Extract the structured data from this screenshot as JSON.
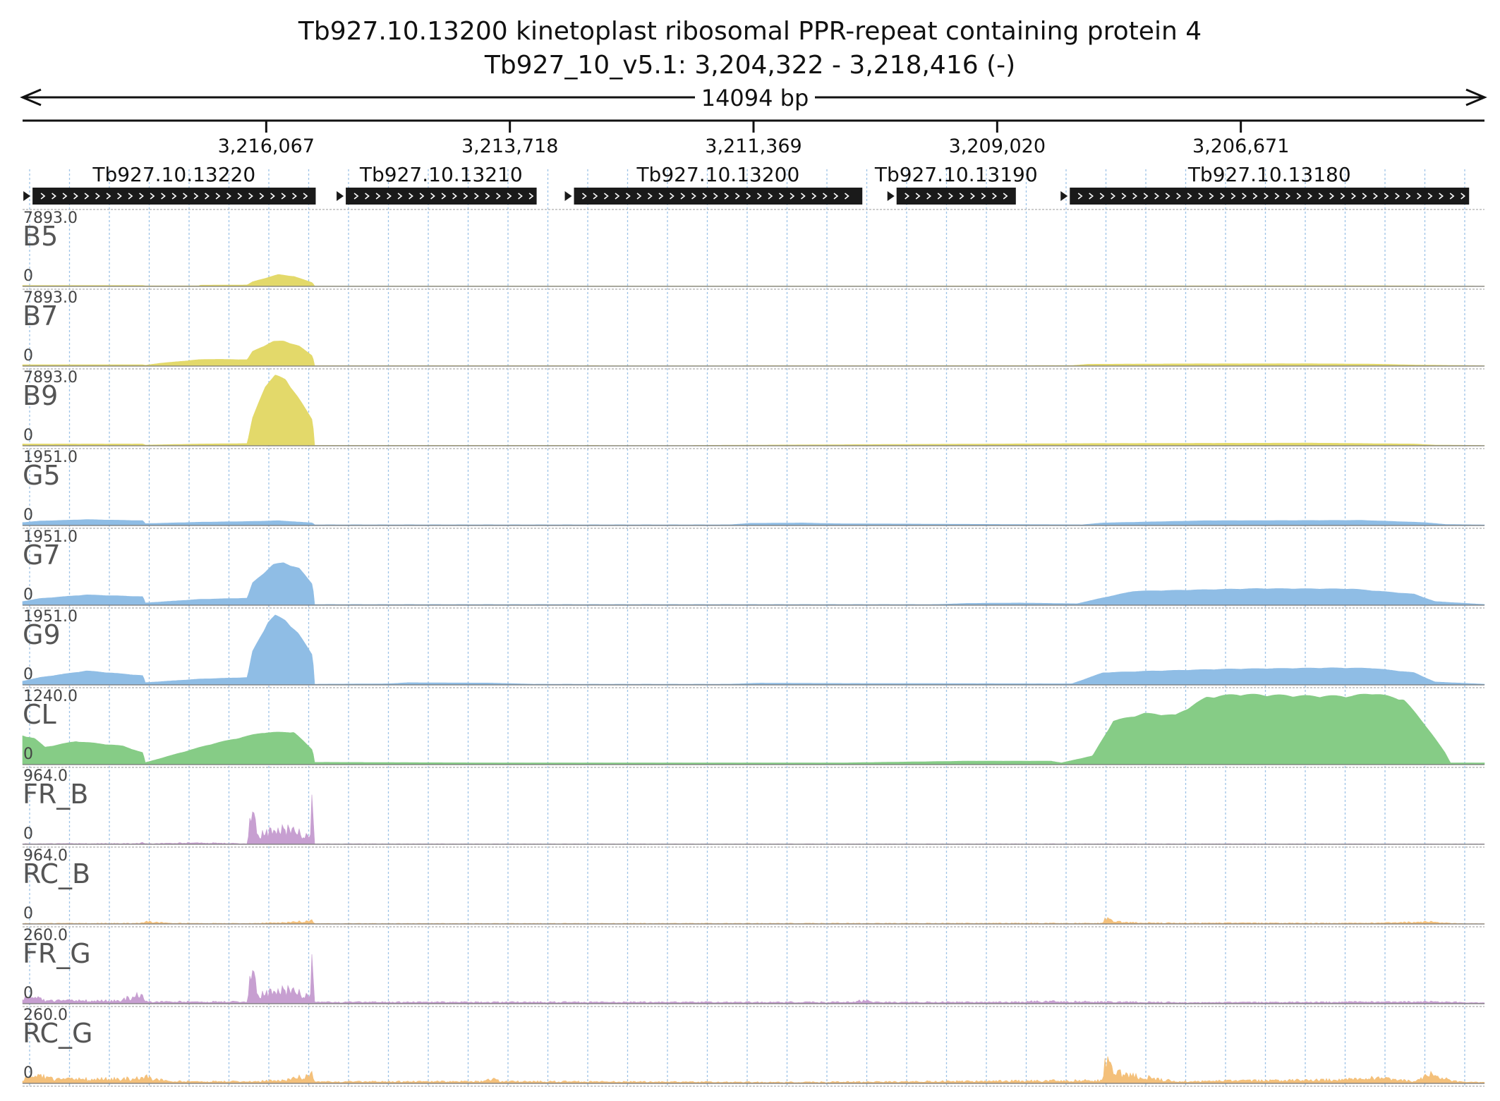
{
  "title": "Tb927.10.13200  kinetoplast ribosomal PPR-repeat containing protein 4",
  "subtitle": "Tb927_10_v5.1: 3,204,322 - 3,218,416 (-)",
  "chart_data": {
    "type": "area",
    "region": {
      "chromosome": "Tb927_10_v5.1",
      "start": 3204322,
      "end": 3218416,
      "strand": "-",
      "reversed": true
    },
    "span_label": "14094 bp",
    "x_ticks": [
      {
        "value": 3216067,
        "label": "3,216,067"
      },
      {
        "value": 3213718,
        "label": "3,213,718"
      },
      {
        "value": 3211369,
        "label": "3,211,369"
      },
      {
        "value": 3209020,
        "label": "3,209,020"
      },
      {
        "value": 3206671,
        "label": "3,206,671"
      }
    ],
    "genes": [
      {
        "name": "Tb927.10.13220",
        "start": 3218320,
        "end": 3215590
      },
      {
        "name": "Tb927.10.13210",
        "start": 3215300,
        "end": 3213460
      },
      {
        "name": "Tb927.10.13200",
        "start": 3213100,
        "end": 3210320
      },
      {
        "name": "Tb927.10.13190",
        "start": 3209990,
        "end": 3208840
      },
      {
        "name": "Tb927.10.13180",
        "start": 3208320,
        "end": 3204470
      }
    ],
    "tracks": [
      {
        "name": "B5",
        "max": 7893.0,
        "max_label": "7893.0",
        "min_label": "0",
        "color": "#e3d96a",
        "kind": "smooth",
        "profile": [
          [
            3218416,
            100
          ],
          [
            3217250,
            100
          ],
          [
            3217240,
            60
          ],
          [
            3216720,
            60
          ],
          [
            3216700,
            140
          ],
          [
            3216250,
            160
          ],
          [
            3216200,
            500
          ],
          [
            3215950,
            1300
          ],
          [
            3215800,
            1100
          ],
          [
            3215620,
            400
          ],
          [
            3215600,
            30
          ],
          [
            3212300,
            30
          ],
          [
            3211500,
            30
          ],
          [
            3207000,
            60
          ],
          [
            3206000,
            80
          ],
          [
            3205000,
            60
          ],
          [
            3204600,
            40
          ],
          [
            3204322,
            20
          ]
        ]
      },
      {
        "name": "B7",
        "max": 7893.0,
        "max_label": "7893.0",
        "min_label": "0",
        "color": "#e3d96a",
        "kind": "smooth",
        "profile": [
          [
            3218416,
            150
          ],
          [
            3217250,
            150
          ],
          [
            3217240,
            80
          ],
          [
            3217100,
            300
          ],
          [
            3216720,
            700
          ],
          [
            3216600,
            750
          ],
          [
            3216250,
            700
          ],
          [
            3216200,
            1600
          ],
          [
            3216000,
            2700
          ],
          [
            3215900,
            2750
          ],
          [
            3215750,
            2200
          ],
          [
            3215620,
            1100
          ],
          [
            3215600,
            50
          ],
          [
            3212000,
            40
          ],
          [
            3208300,
            60
          ],
          [
            3208150,
            200
          ],
          [
            3207200,
            250
          ],
          [
            3206000,
            260
          ],
          [
            3205400,
            220
          ],
          [
            3205000,
            120
          ],
          [
            3204322,
            40
          ]
        ]
      },
      {
        "name": "B9",
        "max": 7893.0,
        "max_label": "7893.0",
        "min_label": "0",
        "color": "#e3d96a",
        "kind": "smooth",
        "profile": [
          [
            3218416,
            200
          ],
          [
            3217250,
            200
          ],
          [
            3217240,
            80
          ],
          [
            3216700,
            200
          ],
          [
            3216250,
            250
          ],
          [
            3216200,
            3000
          ],
          [
            3216080,
            6500
          ],
          [
            3215980,
            7700
          ],
          [
            3215880,
            7300
          ],
          [
            3215760,
            5300
          ],
          [
            3215620,
            2800
          ],
          [
            3215600,
            50
          ],
          [
            3212000,
            40
          ],
          [
            3208150,
            250
          ],
          [
            3206000,
            300
          ],
          [
            3205000,
            200
          ],
          [
            3204800,
            80
          ],
          [
            3204322,
            40
          ]
        ]
      },
      {
        "name": "G5",
        "max": 1951.0,
        "max_label": "1951.0",
        "min_label": "0",
        "color": "#8fbde5",
        "kind": "smooth",
        "profile": [
          [
            3218416,
            80
          ],
          [
            3218250,
            120
          ],
          [
            3217800,
            160
          ],
          [
            3217250,
            130
          ],
          [
            3217240,
            50
          ],
          [
            3216700,
            90
          ],
          [
            3216200,
            110
          ],
          [
            3215950,
            130
          ],
          [
            3215620,
            70
          ],
          [
            3215600,
            20
          ],
          [
            3211600,
            20
          ],
          [
            3211400,
            60
          ],
          [
            3210900,
            70
          ],
          [
            3210600,
            50
          ],
          [
            3208200,
            20
          ],
          [
            3208000,
            70
          ],
          [
            3207000,
            130
          ],
          [
            3205500,
            140
          ],
          [
            3204900,
            80
          ],
          [
            3204700,
            30
          ],
          [
            3204322,
            15
          ]
        ]
      },
      {
        "name": "G7",
        "max": 1951.0,
        "max_label": "1951.0",
        "min_label": "0",
        "color": "#8fbde5",
        "kind": "smooth",
        "profile": [
          [
            3218416,
            100
          ],
          [
            3218250,
            180
          ],
          [
            3217800,
            280
          ],
          [
            3217250,
            230
          ],
          [
            3217240,
            60
          ],
          [
            3216700,
            160
          ],
          [
            3216250,
            190
          ],
          [
            3216200,
            600
          ],
          [
            3216000,
            1100
          ],
          [
            3215900,
            1150
          ],
          [
            3215750,
            1000
          ],
          [
            3215620,
            560
          ],
          [
            3215600,
            20
          ],
          [
            3209600,
            20
          ],
          [
            3209300,
            50
          ],
          [
            3208800,
            60
          ],
          [
            3208250,
            40
          ],
          [
            3208000,
            200
          ],
          [
            3207700,
            380
          ],
          [
            3206500,
            450
          ],
          [
            3205600,
            440
          ],
          [
            3205000,
            300
          ],
          [
            3204800,
            100
          ],
          [
            3204322,
            20
          ]
        ]
      },
      {
        "name": "G9",
        "max": 1951.0,
        "max_label": "1951.0",
        "min_label": "0",
        "color": "#8fbde5",
        "kind": "smooth",
        "profile": [
          [
            3218416,
            100
          ],
          [
            3218250,
            200
          ],
          [
            3217800,
            380
          ],
          [
            3217250,
            250
          ],
          [
            3217240,
            60
          ],
          [
            3216700,
            160
          ],
          [
            3216250,
            200
          ],
          [
            3216200,
            900
          ],
          [
            3216050,
            1700
          ],
          [
            3215980,
            1880
          ],
          [
            3215880,
            1750
          ],
          [
            3215760,
            1400
          ],
          [
            3215620,
            800
          ],
          [
            3215600,
            20
          ],
          [
            3214900,
            30
          ],
          [
            3214700,
            60
          ],
          [
            3213900,
            50
          ],
          [
            3213500,
            20
          ],
          [
            3211600,
            20
          ],
          [
            3211300,
            50
          ],
          [
            3210600,
            40
          ],
          [
            3208300,
            30
          ],
          [
            3208000,
            330
          ],
          [
            3207600,
            370
          ],
          [
            3206800,
            430
          ],
          [
            3205800,
            460
          ],
          [
            3205400,
            450
          ],
          [
            3205000,
            330
          ],
          [
            3204800,
            80
          ],
          [
            3204322,
            20
          ]
        ]
      },
      {
        "name": "CL",
        "max": 1240.0,
        "max_label": "1240.0",
        "min_label": "0",
        "color": "#86cc86",
        "kind": "smooth",
        "profile": [
          [
            3218416,
            500
          ],
          [
            3218300,
            450
          ],
          [
            3218200,
            300
          ],
          [
            3217900,
            400
          ],
          [
            3217450,
            320
          ],
          [
            3217250,
            200
          ],
          [
            3217240,
            30
          ],
          [
            3216600,
            350
          ],
          [
            3216100,
            550
          ],
          [
            3215800,
            560
          ],
          [
            3215620,
            250
          ],
          [
            3215600,
            40
          ],
          [
            3214000,
            30
          ],
          [
            3212000,
            30
          ],
          [
            3210500,
            30
          ],
          [
            3209300,
            60
          ],
          [
            3208500,
            60
          ],
          [
            3208400,
            30
          ],
          [
            3208100,
            150
          ],
          [
            3207900,
            750
          ],
          [
            3207600,
            880
          ],
          [
            3207300,
            850
          ],
          [
            3207000,
            1160
          ],
          [
            3206700,
            1210
          ],
          [
            3206000,
            1180
          ],
          [
            3205600,
            1180
          ],
          [
            3205400,
            1230
          ],
          [
            3205100,
            1120
          ],
          [
            3204900,
            700
          ],
          [
            3204700,
            200
          ],
          [
            3204650,
            30
          ],
          [
            3204322,
            30
          ]
        ]
      },
      {
        "name": "FR_B",
        "max": 964.0,
        "max_label": "964.0",
        "min_label": "0",
        "color": "#c79fd1",
        "kind": "spiky",
        "profile": [
          [
            3218416,
            10
          ],
          [
            3217300,
            15
          ],
          [
            3217250,
            45
          ],
          [
            3217240,
            10
          ],
          [
            3216700,
            30
          ],
          [
            3216250,
            10
          ],
          [
            3216200,
            920
          ],
          [
            3216150,
            180
          ],
          [
            3215980,
            250
          ],
          [
            3215880,
            300
          ],
          [
            3215760,
            220
          ],
          [
            3215640,
            150
          ],
          [
            3215620,
            960
          ],
          [
            3215600,
            8
          ],
          [
            3212000,
            6
          ],
          [
            3207000,
            8
          ],
          [
            3204322,
            5
          ]
        ]
      },
      {
        "name": "RC_B",
        "max": 964.0,
        "max_label": "964.0",
        "min_label": "0",
        "color": "#f4c07a",
        "kind": "spiky",
        "profile": [
          [
            3218416,
            10
          ],
          [
            3217300,
            15
          ],
          [
            3217200,
            45
          ],
          [
            3217000,
            15
          ],
          [
            3216300,
            10
          ],
          [
            3215900,
            25
          ],
          [
            3215620,
            60
          ],
          [
            3215600,
            8
          ],
          [
            3208000,
            15
          ],
          [
            3207990,
            100
          ],
          [
            3207800,
            30
          ],
          [
            3207500,
            20
          ],
          [
            3205500,
            15
          ],
          [
            3204850,
            40
          ],
          [
            3204600,
            10
          ],
          [
            3204322,
            5
          ]
        ]
      },
      {
        "name": "FR_G",
        "max": 260.0,
        "max_label": "260.0",
        "min_label": "0",
        "color": "#c79fd1",
        "kind": "spiky",
        "profile": [
          [
            3218416,
            25
          ],
          [
            3218300,
            45
          ],
          [
            3218200,
            15
          ],
          [
            3217500,
            15
          ],
          [
            3217250,
            50
          ],
          [
            3217240,
            10
          ],
          [
            3216600,
            10
          ],
          [
            3216250,
            10
          ],
          [
            3216200,
            255
          ],
          [
            3216150,
            45
          ],
          [
            3215980,
            60
          ],
          [
            3215880,
            75
          ],
          [
            3215760,
            55
          ],
          [
            3215640,
            40
          ],
          [
            3215620,
            258
          ],
          [
            3215600,
            8
          ],
          [
            3210400,
            8
          ],
          [
            3210300,
            20
          ],
          [
            3210200,
            8
          ],
          [
            3208800,
            8
          ],
          [
            3208700,
            12
          ],
          [
            3207000,
            6
          ],
          [
            3204800,
            10
          ],
          [
            3204322,
            4
          ]
        ]
      },
      {
        "name": "RC_G",
        "max": 260.0,
        "max_label": "260.0",
        "min_label": "0",
        "color": "#f4c07a",
        "kind": "spiky",
        "profile": [
          [
            3218416,
            15
          ],
          [
            3218300,
            50
          ],
          [
            3218100,
            20
          ],
          [
            3217300,
            25
          ],
          [
            3217250,
            35
          ],
          [
            3217000,
            10
          ],
          [
            3216300,
            10
          ],
          [
            3215900,
            15
          ],
          [
            3215620,
            45
          ],
          [
            3215600,
            8
          ],
          [
            3214000,
            10
          ],
          [
            3213900,
            25
          ],
          [
            3213800,
            10
          ],
          [
            3211000,
            6
          ],
          [
            3208000,
            15
          ],
          [
            3207990,
            110
          ],
          [
            3207800,
            45
          ],
          [
            3207500,
            25
          ],
          [
            3207300,
            10
          ],
          [
            3205500,
            20
          ],
          [
            3205350,
            30
          ],
          [
            3205000,
            10
          ],
          [
            3204850,
            45
          ],
          [
            3204600,
            10
          ],
          [
            3204322,
            5
          ]
        ]
      }
    ]
  }
}
